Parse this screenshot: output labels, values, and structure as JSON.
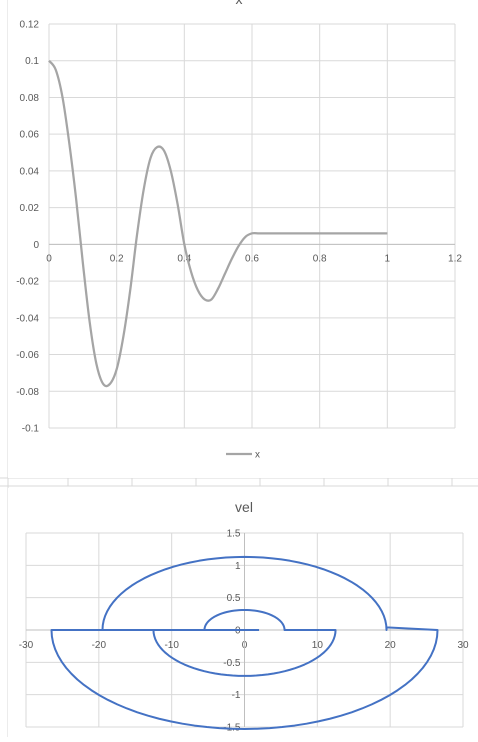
{
  "charts": [
    {
      "type": "line",
      "title": "x",
      "legend": [
        "x"
      ],
      "legend_position": "bottom",
      "x_ticks": [
        "0",
        "0.2",
        "0.4",
        "0.6",
        "0.8",
        "1",
        "1.2"
      ],
      "y_ticks": [
        "0.12",
        "0.1",
        "0.08",
        "0.06",
        "0.04",
        "0.02",
        "0",
        "-0.02",
        "-0.04",
        "-0.06",
        "-0.08",
        "-0.1"
      ],
      "line_color": "#a5a5a5"
    },
    {
      "type": "scatter",
      "title": "vel",
      "x_ticks": [
        "-30",
        "-20",
        "-10",
        "0",
        "10",
        "20",
        "30"
      ],
      "y_ticks": [
        "1.5",
        "1",
        "0.5",
        "0",
        "-0.5",
        "-1",
        "-1.5"
      ],
      "line_color": "#4472c4"
    }
  ],
  "chart_data": [
    {
      "type": "line",
      "title": "x",
      "xlim": [
        0,
        1.2
      ],
      "ylim": [
        -0.1,
        0.12
      ],
      "grid": true,
      "legend": "bottom",
      "series": [
        {
          "name": "x",
          "x": [
            0,
            0.02,
            0.04,
            0.06,
            0.08,
            0.1,
            0.12,
            0.14,
            0.16,
            0.18,
            0.2,
            0.22,
            0.24,
            0.26,
            0.28,
            0.3,
            0.32,
            0.34,
            0.36,
            0.38,
            0.4,
            0.42,
            0.44,
            0.46,
            0.48,
            0.5,
            0.52,
            0.54,
            0.56,
            0.58,
            0.6,
            0.62,
            0.64,
            0.66,
            0.68,
            0.7,
            0.72,
            0.75,
            0.8,
            0.85,
            0.9,
            0.93,
            0.96,
            1.0
          ],
          "y": [
            0.1,
            0.095,
            0.08,
            0.055,
            0.025,
            -0.01,
            -0.042,
            -0.065,
            -0.076,
            -0.076,
            -0.068,
            -0.05,
            -0.025,
            0.005,
            0.03,
            0.047,
            0.053,
            0.051,
            0.04,
            0.022,
            0.0,
            -0.015,
            -0.025,
            -0.03,
            -0.03,
            -0.024,
            -0.016,
            -0.008,
            -0.001,
            0.004,
            0.006,
            0.006,
            0.006,
            0.006,
            0.006,
            0.006,
            0.006,
            0.006,
            0.006,
            0.006,
            0.006,
            0.006,
            0.006,
            0.006
          ]
        }
      ]
    },
    {
      "type": "scatter",
      "title": "vel",
      "xlim": [
        -30,
        30
      ],
      "ylim": [
        -1.5,
        1.5
      ],
      "grid": true,
      "series": [
        {
          "segments": [
            {
              "x": [
                2,
                -5.5
              ],
              "y": [
                0,
                0
              ]
            },
            {
              "kind": "arc",
              "cx": 0,
              "cy": 0,
              "rx": 5.5,
              "ry": 0.31,
              "from": 180,
              "to": 0
            },
            {
              "x": [
                5.5,
                12.5
              ],
              "y": [
                0,
                0
              ]
            },
            {
              "kind": "arc",
              "cx": 0,
              "cy": 0,
              "rx": 12.5,
              "ry": 0.71,
              "from": 0,
              "to": -180
            },
            {
              "x": [
                -12.5,
                -26.5
              ],
              "y": [
                0,
                0
              ]
            },
            {
              "kind": "arc",
              "cx": 0,
              "cy": 0,
              "rx": 26.5,
              "ry": 1.53,
              "from": 180,
              "to": 360
            },
            {
              "x": [
                26.5,
                19.5
              ],
              "y": [
                0,
                0.04
              ]
            },
            {
              "kind": "arc",
              "cx": 0,
              "cy": 0,
              "rx": 19.5,
              "ry": 1.13,
              "from": 0,
              "to": 180
            },
            {
              "x": [
                -19.5,
                -5.5
              ],
              "y": [
                0,
                0
              ]
            }
          ]
        }
      ]
    }
  ]
}
